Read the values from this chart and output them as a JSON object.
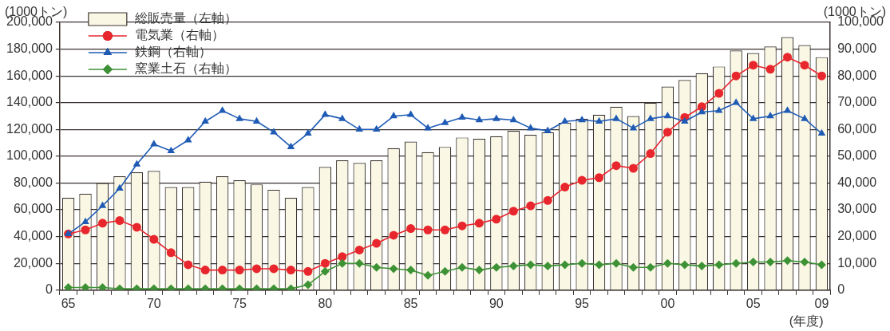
{
  "chart_data": {
    "type": "bar",
    "ylabel": "(1000トン)",
    "y2label": "(1000トン)",
    "xlabel": "(年度)",
    "categories": [
      "65",
      null,
      null,
      null,
      null,
      "70",
      null,
      null,
      null,
      null,
      "75",
      null,
      null,
      null,
      null,
      "80",
      null,
      null,
      null,
      null,
      "85",
      null,
      null,
      null,
      null,
      "90",
      null,
      null,
      null,
      null,
      "95",
      null,
      null,
      null,
      null,
      "00",
      null,
      null,
      null,
      null,
      "05",
      null,
      null,
      null,
      "09"
    ],
    "series": [
      {
        "name": "総販売量（左軸）",
        "color": "#faf8e4",
        "values": [
          69000,
          72000,
          80000,
          85000,
          88000,
          89000,
          77000,
          77000,
          81000,
          85000,
          82000,
          79000,
          75000,
          69000,
          77000,
          92000,
          97000,
          95000,
          97000,
          106000,
          111000,
          103000,
          107000,
          114000,
          113000,
          115000,
          119000,
          116000,
          118000,
          125000,
          128000,
          131000,
          137000,
          130000,
          140000,
          152000,
          157000,
          162000,
          167000,
          179000,
          177000,
          182000,
          189000,
          183000,
          174000
        ]
      },
      {
        "name": "電気業（右軸）",
        "type": "line",
        "axis": "y2",
        "marker": "circle",
        "color": "#e8262d",
        "values": [
          21000,
          22500,
          25000,
          26000,
          23500,
          19000,
          14000,
          9500,
          7500,
          7500,
          7500,
          8000,
          8000,
          7500,
          7000,
          10000,
          12500,
          15000,
          17500,
          20500,
          23000,
          22500,
          22500,
          24000,
          25000,
          26500,
          29500,
          31500,
          33500,
          38500,
          41000,
          42000,
          46500,
          45500,
          51000,
          59000,
          64500,
          68500,
          73500,
          80000,
          84000,
          82500,
          87000,
          84000,
          80000
        ]
      },
      {
        "name": "鉄鋼（右軸）",
        "type": "line",
        "axis": "y2",
        "marker": "triangle",
        "color": "#1f5bb5",
        "values": [
          21000,
          25500,
          31500,
          38000,
          47000,
          54500,
          52000,
          56000,
          63000,
          67000,
          64000,
          63000,
          59000,
          53500,
          58500,
          65500,
          64000,
          60000,
          60000,
          65000,
          65500,
          60500,
          62500,
          64500,
          63500,
          64000,
          63500,
          60500,
          59500,
          63000,
          63500,
          63000,
          64000,
          60500,
          64000,
          65000,
          63000,
          66500,
          67000,
          70000,
          64000,
          65000,
          67000,
          64000,
          58500
        ]
      },
      {
        "name": "窯業土石（右軸）",
        "type": "line",
        "axis": "y2",
        "marker": "diamond",
        "color": "#3e9236",
        "values": [
          1000,
          1000,
          1000,
          500,
          500,
          500,
          500,
          500,
          500,
          500,
          500,
          500,
          500,
          500,
          2000,
          7000,
          10000,
          10000,
          8500,
          8000,
          7500,
          5500,
          7000,
          8500,
          7500,
          8500,
          9000,
          9500,
          9000,
          9500,
          10000,
          9500,
          10000,
          8500,
          8500,
          10000,
          9500,
          9000,
          9500,
          10000,
          10500,
          10500,
          11000,
          10500,
          9500
        ]
      }
    ],
    "ylim": [
      0,
      200000
    ],
    "yticks": [
      0,
      {
        "value": 20000,
        "label": "20,000"
      },
      {
        "value": 40000,
        "label": "40,000"
      },
      {
        "value": 60000,
        "label": "60,000"
      },
      {
        "value": 80000,
        "label": "80,000"
      },
      {
        "value": 100000,
        "label": "100,000"
      },
      {
        "value": 120000,
        "label": "120,000"
      },
      {
        "value": 140000,
        "label": "140,000"
      },
      {
        "value": 160000,
        "label": "160,000"
      },
      {
        "value": 180000,
        "label": "180,000"
      },
      {
        "value": 200000,
        "label": "200,000"
      }
    ],
    "y2lim": [
      0,
      100000
    ],
    "y2ticks": [
      0,
      {
        "value": 10000,
        "label": "10,000"
      },
      {
        "value": 20000,
        "label": "20,000"
      },
      {
        "value": 30000,
        "label": "30,000"
      },
      {
        "value": 40000,
        "label": "40,000"
      },
      {
        "value": 50000,
        "label": "50,000"
      },
      {
        "value": 60000,
        "label": "60,000"
      },
      {
        "value": 70000,
        "label": "70,000"
      },
      {
        "value": 80000,
        "label": "80,000"
      },
      {
        "value": 90000,
        "label": "90,000"
      },
      {
        "value": 100000,
        "label": "100,000"
      }
    ],
    "grid": "y",
    "legend": "top left",
    "line_style": "solid"
  }
}
